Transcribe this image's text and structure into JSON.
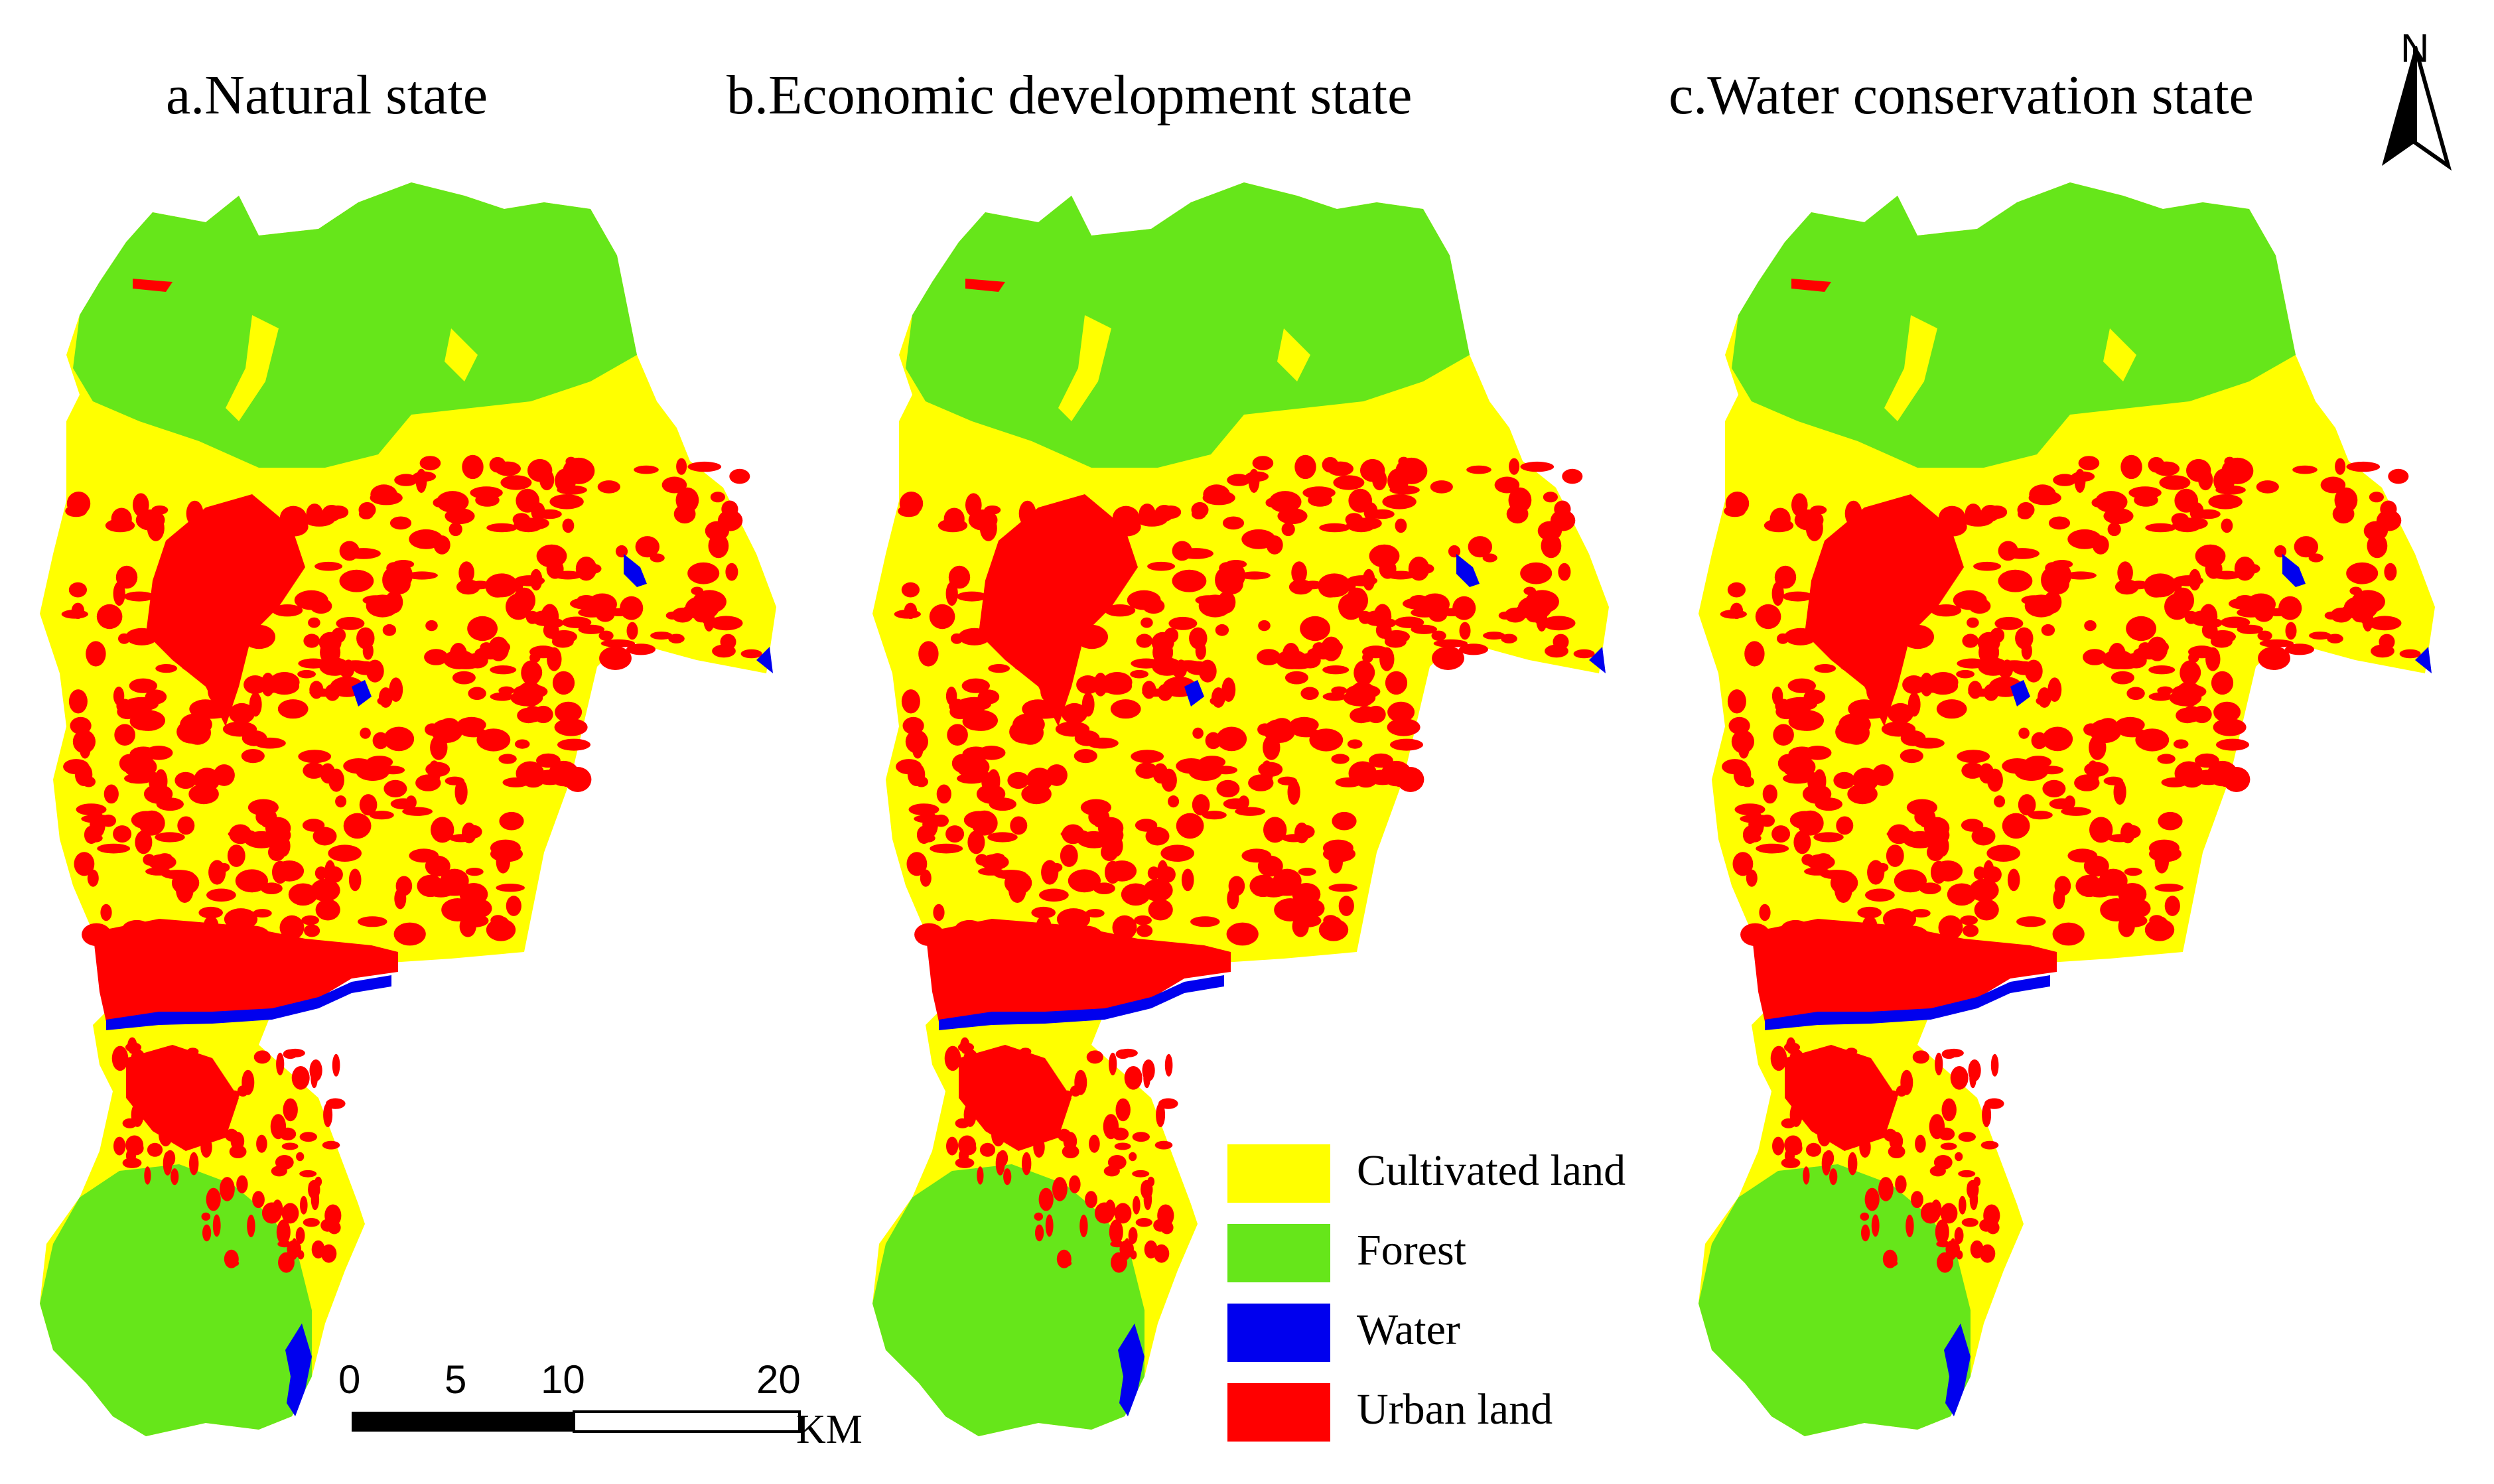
{
  "titles": {
    "a": "a.Natural state",
    "b": "b.Economic development state",
    "c": "c.Water conservation state"
  },
  "north_arrow": {
    "label": "N"
  },
  "scale_bar": {
    "ticks": [
      "0",
      "5",
      "10",
      "20"
    ],
    "unit": "KM"
  },
  "legend": {
    "items": [
      {
        "label": "Cultivated land",
        "color": "#ffff00"
      },
      {
        "label": "Forest",
        "color": "#66e61a"
      },
      {
        "label": "Water",
        "color": "#0000ee"
      },
      {
        "label": "Urban land",
        "color": "#ff0000"
      }
    ]
  },
  "colors": {
    "cultivated": "#ffff00",
    "forest": "#66e61a",
    "water": "#0000ee",
    "urban": "#ff0000"
  }
}
